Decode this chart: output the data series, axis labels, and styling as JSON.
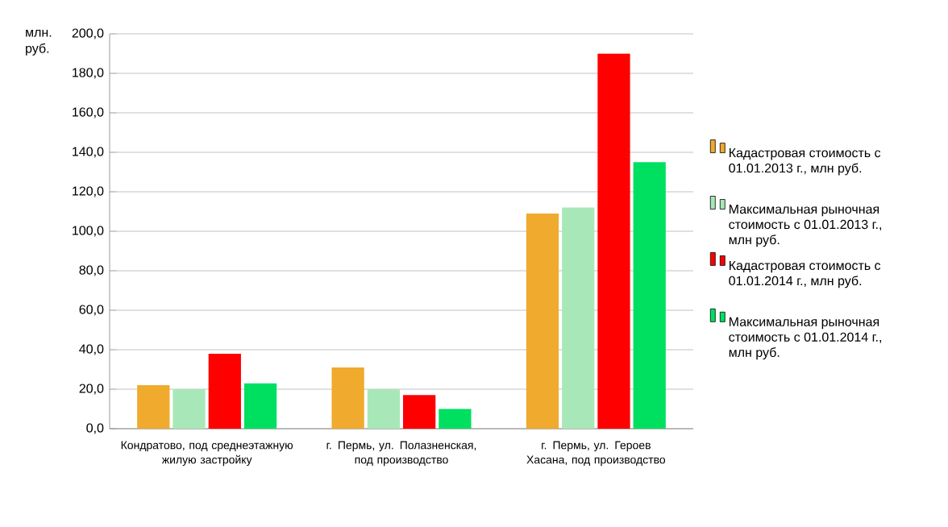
{
  "chart_data": {
    "type": "bar",
    "ylabel": "млн. руб.",
    "categories": [
      "Кондратово, под среднеэтажную жилую застройку",
      "г. Пермь, ул. Полазненская, под производство",
      "г. Пермь, ул. Героев Хасана, под производство"
    ],
    "series": [
      {
        "name": "Кадастровая стоимость с 01.01.2013 г., млн руб.",
        "color": "#f0aa2e",
        "values": [
          22.0,
          31.0,
          109.0
        ]
      },
      {
        "name": "Максимальная рыночная стоимость с 01.01.2013 г., млн руб.",
        "color": "#a8e8b8",
        "values": [
          20.0,
          20.0,
          112.0
        ]
      },
      {
        "name": "Кадастровая стоимость с 01.01.2014 г., млн руб.",
        "color": "#ff0000",
        "values": [
          38,
          17,
          190
        ]
      },
      {
        "name": "Максимальная рыночная стоимость с 01.01.2014 г., млн руб.",
        "color": "#00e060",
        "values": [
          23,
          10,
          135
        ]
      }
    ],
    "ylim": [
      0,
      200
    ],
    "yticks": [
      {
        "value": 0,
        "label": "0,0"
      },
      {
        "value": 20,
        "label": "20,0"
      },
      {
        "value": 40,
        "label": "40,0"
      },
      {
        "value": 60,
        "label": "60,0"
      },
      {
        "value": 80,
        "label": "80,0"
      },
      {
        "value": 100,
        "label": "100,0"
      },
      {
        "value": 120,
        "label": "120,0"
      },
      {
        "value": 140,
        "label": "140,0"
      },
      {
        "value": 160,
        "label": "160,0"
      },
      {
        "value": 180,
        "label": "180,0"
      },
      {
        "value": 200,
        "label": "200,0"
      }
    ],
    "grid": "y",
    "legend": "right"
  }
}
